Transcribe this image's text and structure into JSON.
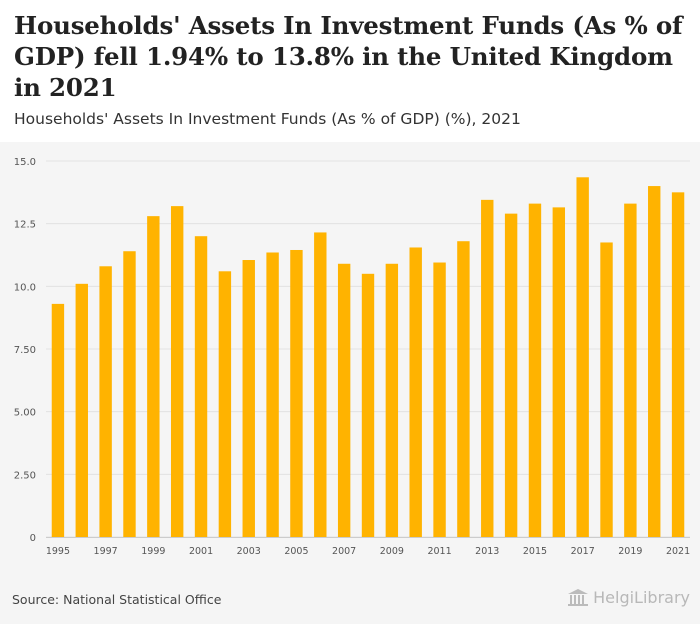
{
  "header": {
    "title": "Households' Assets In Investment Funds (As % of GDP) fell 1.94% to 13.8% in the United Kingdom in 2021",
    "subtitle": "Households' Assets In Investment Funds (As % of GDP) (%), 2021"
  },
  "footer": {
    "source": "Source: National Statistical Office",
    "brand": "HelgiLibrary",
    "brand_icon": "library-building-icon"
  },
  "colors": {
    "bar": "#FFB300",
    "grid": "#e2e2e2",
    "axis_text": "#555555",
    "background": "#f5f5f5"
  },
  "chart_data": {
    "type": "bar",
    "title": "Households' Assets In Investment Funds (As % of GDP) (%), 2021",
    "xlabel": "",
    "ylabel": "",
    "ylim": [
      0,
      15
    ],
    "yticks": [
      0,
      2.5,
      5,
      7.5,
      10,
      12.5,
      15
    ],
    "ytick_labels": [
      "0",
      "2.50",
      "5.00",
      "7.50",
      "10.0",
      "12.5",
      "15.0"
    ],
    "grid": true,
    "categories": [
      "1995",
      "1996",
      "1997",
      "1998",
      "1999",
      "2000",
      "2001",
      "2002",
      "2003",
      "2004",
      "2005",
      "2006",
      "2007",
      "2008",
      "2009",
      "2010",
      "2011",
      "2012",
      "2013",
      "2014",
      "2015",
      "2016",
      "2017",
      "2018",
      "2019",
      "2020",
      "2021"
    ],
    "xtick_labels": [
      "1995",
      "1997",
      "1999",
      "2001",
      "2003",
      "2005",
      "2007",
      "2009",
      "2011",
      "2013",
      "2015",
      "2017",
      "2019",
      "2021"
    ],
    "values": [
      9.3,
      10.1,
      10.8,
      11.4,
      12.8,
      13.2,
      12.0,
      10.6,
      11.05,
      11.35,
      11.45,
      12.15,
      10.9,
      10.5,
      10.9,
      11.55,
      10.95,
      11.8,
      13.45,
      12.9,
      13.3,
      13.15,
      14.35,
      11.75,
      13.3,
      14.0,
      13.75
    ]
  }
}
